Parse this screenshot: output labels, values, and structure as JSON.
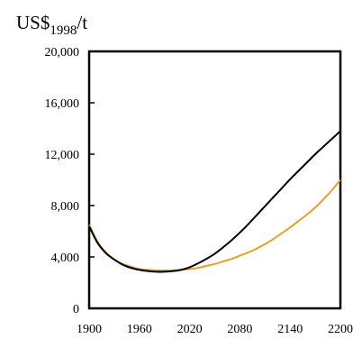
{
  "chart_data": {
    "type": "line",
    "unit_label": {
      "main": "US$",
      "subscript": "1998",
      "suffix": "/t"
    },
    "xlim": [
      1900,
      2200
    ],
    "ylim": [
      0,
      20000
    ],
    "x_ticks": [
      1900,
      1960,
      2020,
      2080,
      2140,
      2200
    ],
    "x_tick_labels": [
      "1900",
      "1960",
      "2020",
      "2080",
      "2140",
      "2200"
    ],
    "y_ticks": [
      0,
      4000,
      8000,
      12000,
      16000,
      20000
    ],
    "y_tick_labels": [
      "0",
      "4,000",
      "8,000",
      "12,000",
      "16,000",
      "20,000"
    ],
    "grid": false,
    "legend": "none",
    "series": [
      {
        "color": "#000000",
        "x": [
          1900,
          1910,
          1920,
          1930,
          1940,
          1950,
          1960,
          1970,
          1980,
          1990,
          2000,
          2010,
          2020,
          2030,
          2040,
          2050,
          2060,
          2070,
          2080,
          2090,
          2100,
          2110,
          2120,
          2130,
          2140,
          2150,
          2160,
          2170,
          2180,
          2190,
          2200
        ],
        "y": [
          6400,
          5100,
          4300,
          3800,
          3400,
          3150,
          3000,
          2900,
          2850,
          2850,
          2900,
          3000,
          3200,
          3500,
          3850,
          4250,
          4750,
          5300,
          5900,
          6550,
          7250,
          7950,
          8650,
          9350,
          10050,
          10700,
          11350,
          12000,
          12600,
          13200,
          13800
        ]
      },
      {
        "color": "#E8A02C",
        "x": [
          1900,
          1910,
          1920,
          1930,
          1940,
          1950,
          1960,
          1970,
          1980,
          1990,
          2000,
          2010,
          2020,
          2030,
          2040,
          2050,
          2060,
          2070,
          2080,
          2090,
          2100,
          2110,
          2120,
          2130,
          2140,
          2150,
          2160,
          2170,
          2180,
          2190,
          2200
        ],
        "y": [
          6500,
          5200,
          4350,
          3800,
          3450,
          3250,
          3050,
          3000,
          2950,
          2950,
          2950,
          3000,
          3050,
          3150,
          3300,
          3450,
          3650,
          3850,
          4100,
          4350,
          4650,
          5000,
          5400,
          5850,
          6300,
          6800,
          7300,
          7850,
          8500,
          9200,
          10000
        ]
      }
    ]
  }
}
